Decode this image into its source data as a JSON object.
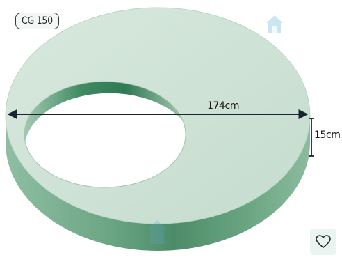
{
  "product": {
    "model_badge": "CG 150",
    "shape": "concrete ring slab with eccentric opening"
  },
  "dimensions": {
    "diameter": "174cm",
    "height": "15cm"
  },
  "colors": {
    "slab_top": "#cfe3d7",
    "slab_side": "#5e9a76",
    "inner_wall": "#3f8a62",
    "arrow": "#1a2430"
  },
  "icons": {
    "watermark": "house-icon",
    "favorite": "heart-icon"
  }
}
